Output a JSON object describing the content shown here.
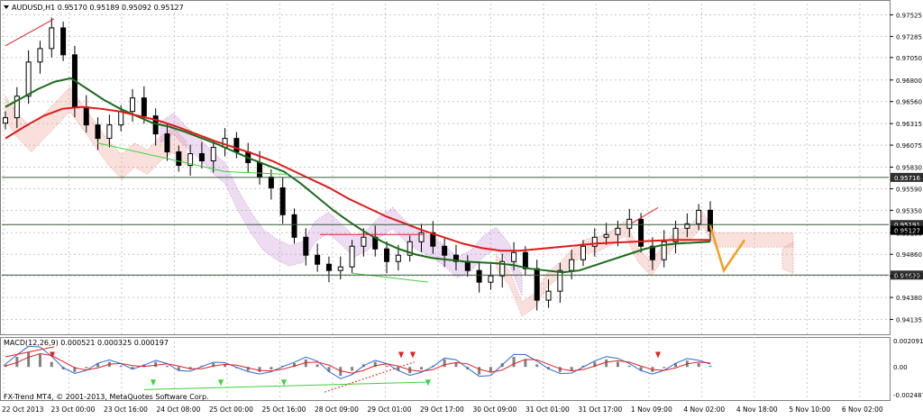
{
  "header": {
    "symbol_line": "AUDUSD,H1  0.95170 0.95189 0.95092 0.95127"
  },
  "indicator": {
    "macd_label": "MACD(12,26,9) 0.000521 0.000325 0.000197"
  },
  "watermark": "FX-Trend MT4, © 2001-2013, MetaQuotes Software Corp.",
  "colors": {
    "background": "#ffffff",
    "grid": "#c8c8c8",
    "candle": "#000000",
    "ema_fast": "#1a6b1a",
    "ema_slow": "#e01818",
    "cloud_bull": "#e89080",
    "cloud_bear": "#c080d0",
    "hline": "#3a5a3a",
    "price_label_bg": "#2f2f2f",
    "forecast": "#f0a020",
    "macd_main": "#2a6bd8",
    "macd_signal": "#e02020",
    "divergence_bull": "#40d040",
    "divergence_bear": "#e02020"
  },
  "price_axis": {
    "ticks": [
      "0.97525",
      "0.97285",
      "0.97050",
      "0.96800",
      "0.96560",
      "0.96315",
      "0.96075",
      "0.95830",
      "0.95590",
      "0.95350",
      "0.95100",
      "0.94860",
      "0.94620",
      "0.94380",
      "0.94135"
    ],
    "labels": {
      "level_high": "0.95716",
      "level_mid": "0.95191",
      "current": "0.95127",
      "level_low": "0.94629"
    }
  },
  "macd_axis": {
    "ticks": [
      "0.002091",
      "0.00",
      "-0.002487"
    ]
  },
  "time_axis": {
    "labels": [
      "22 Oct 2013",
      "23 Oct 00:00",
      "23 Oct 16:00",
      "24 Oct 08:00",
      "25 Oct 00:00",
      "25 Oct 16:00",
      "28 Oct 09:00",
      "29 Oct 01:00",
      "29 Oct 17:00",
      "30 Oct 09:00",
      "31 Oct 01:00",
      "31 Oct 17:00",
      "1 Nov 09:00",
      "4 Nov 02:00",
      "4 Nov 18:00",
      "5 Nov 10:00",
      "6 Nov 02:00"
    ]
  },
  "chart_data": {
    "type": "candlestick",
    "symbol": "AUDUSD",
    "timeframe": "H1",
    "ohlc_last": {
      "open": 0.9517,
      "high": 0.95189,
      "low": 0.95092,
      "close": 0.95127
    },
    "price_range": [
      0.9398,
      0.9765
    ],
    "horizontal_levels": [
      0.95716,
      0.95191,
      0.94629
    ],
    "x_labels": [
      "22 Oct 2013",
      "23 Oct 00:00",
      "23 Oct 16:00",
      "24 Oct 08:00",
      "25 Oct 00:00",
      "25 Oct 16:00",
      "28 Oct 09:00",
      "29 Oct 01:00",
      "29 Oct 17:00",
      "30 Oct 09:00",
      "31 Oct 01:00",
      "31 Oct 17:00",
      "1 Nov 09:00",
      "4 Nov 02:00",
      "4 Nov 18:00",
      "5 Nov 10:00",
      "6 Nov 02:00"
    ],
    "close_path_approx": [
      0.9638,
      0.9662,
      0.97,
      0.9715,
      0.9738,
      0.9708,
      0.965,
      0.963,
      0.9615,
      0.963,
      0.9645,
      0.966,
      0.964,
      0.962,
      0.96,
      0.9585,
      0.9598,
      0.959,
      0.9605,
      0.9615,
      0.96,
      0.9588,
      0.9572,
      0.956,
      0.953,
      0.9505,
      0.9485,
      0.9475,
      0.9468,
      0.9472,
      0.9495,
      0.9505,
      0.9492,
      0.9478,
      0.9485,
      0.95,
      0.951,
      0.9495,
      0.9485,
      0.9478,
      0.9468,
      0.9455,
      0.9462,
      0.9478,
      0.9488,
      0.947,
      0.9435,
      0.9445,
      0.9468,
      0.948,
      0.9495,
      0.9505,
      0.9508,
      0.9515,
      0.9525,
      0.9495,
      0.948,
      0.95,
      0.9515,
      0.952,
      0.9535,
      0.9512
    ],
    "ema_fast_approx": [
      0.965,
      0.966,
      0.967,
      0.9678,
      0.9682,
      0.967,
      0.9658,
      0.9648,
      0.964,
      0.9632,
      0.9628,
      0.9622,
      0.9615,
      0.9608,
      0.96,
      0.9592,
      0.9585,
      0.9578,
      0.9565,
      0.955,
      0.9535,
      0.9522,
      0.951,
      0.95,
      0.9492,
      0.9486,
      0.9482,
      0.948,
      0.9478,
      0.9477,
      0.9476,
      0.9474,
      0.947,
      0.9468,
      0.9466,
      0.9468,
      0.9474,
      0.948,
      0.9486,
      0.9492,
      0.9496,
      0.9498,
      0.9499,
      0.95
    ],
    "ema_slow_approx": [
      0.9615,
      0.9628,
      0.964,
      0.9648,
      0.965,
      0.9648,
      0.9645,
      0.964,
      0.9635,
      0.9628,
      0.962,
      0.9612,
      0.9605,
      0.9598,
      0.959,
      0.958,
      0.957,
      0.956,
      0.9548,
      0.9538,
      0.9528,
      0.952,
      0.9512,
      0.9505,
      0.9498,
      0.9493,
      0.949,
      0.949,
      0.9492,
      0.9494,
      0.9496,
      0.9498,
      0.9499,
      0.95,
      0.9501,
      0.9502,
      0.9502,
      0.9502
    ],
    "macd_range": [
      -0.002487,
      0.002091
    ],
    "macd_histogram_approx": [
      0.0002,
      0.0008,
      0.0012,
      0.001,
      0.0004,
      -0.0002,
      -0.0004,
      -0.0001,
      0.0003,
      0.0004,
      0.0001,
      -0.0002,
      0.0002,
      0.0004,
      0.0001,
      -0.0003,
      -0.0002,
      0.0001,
      0.0003,
      0.0002,
      -0.0001,
      -0.0003,
      -0.0004,
      -0.0002,
      0.0001,
      0.0003,
      0.0006,
      0.0002,
      -0.0004,
      -0.0007,
      -0.0003,
      0.0002,
      0.0004,
      0.0001,
      -0.0003,
      -0.0005,
      -0.0002,
      0.0001,
      0.0006,
      0.0003,
      -0.0002,
      -0.0006,
      -0.0004,
      0.0003,
      0.0008,
      0.0006,
      0.0002,
      -0.0002,
      -0.0004,
      -0.0003,
      0.0001,
      0.0004,
      0.0006,
      0.0004,
      0.0001,
      -0.0003,
      -0.0004,
      -0.0001,
      0.0003,
      0.0005,
      0.0003,
      0.0001
    ]
  }
}
